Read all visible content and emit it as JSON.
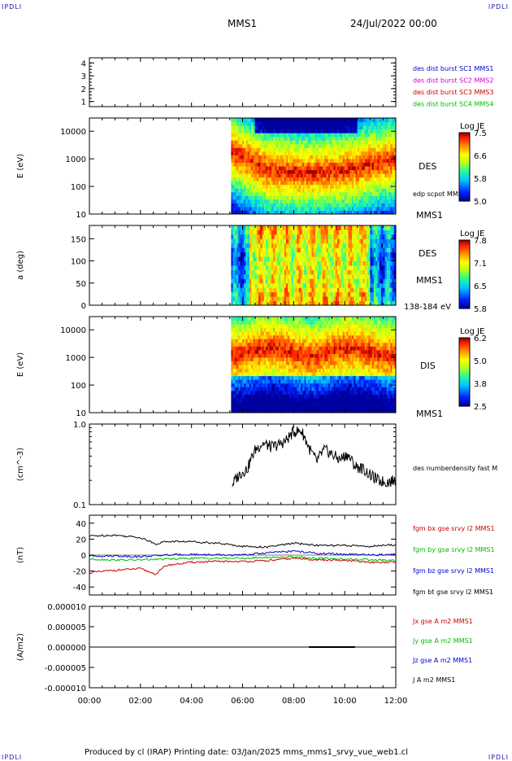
{
  "header": {
    "corner_left": "IPDLI",
    "corner_right": "IPDLI",
    "spacecraft": "MMS1",
    "date": "24/Jul/2022 00:00"
  },
  "footer": {
    "text": "Produced by cl (IRAP)   Printing date: 03/Jan/2025   mms_mms1_srvy_vue_web1.cl",
    "corner_left": "IPDLI",
    "corner_right": "IPDLI"
  },
  "chart_data": [
    {
      "type": "line",
      "panel": "burst-flags",
      "yticks": [
        "1",
        "2",
        "3",
        "4"
      ],
      "ylim": [
        0.6,
        4.4
      ],
      "series": [
        {
          "name": "des dist burst SC1 MMS1",
          "color": "#0000cc"
        },
        {
          "name": "des dist burst SC2 MMS2",
          "color": "#cc00cc"
        },
        {
          "name": "des dist burst SC3 MMS3",
          "color": "#cc0000"
        },
        {
          "name": "des dist burst SC4 MMS4",
          "color": "#00bb00"
        }
      ]
    },
    {
      "type": "heatmap",
      "panel": "des-energy",
      "ylabel": "E (eV)",
      "yscale": "log",
      "ylim": [
        10,
        30000
      ],
      "yticks": [
        "10",
        "100",
        "1000",
        "10000"
      ],
      "x_start_hour": 5.55,
      "label": "DES",
      "sublabel": "MMS1",
      "overlay_label": "edp scpot MMS1",
      "colorbar": {
        "title": "Log JE",
        "ticks": [
          "7.5",
          "6.6",
          "5.8",
          "5.0"
        ]
      },
      "profile_hours": [
        5.55,
        7.0,
        8.5,
        10.0,
        12.0
      ],
      "peak_log_energy": [
        3.3,
        2.6,
        2.5,
        2.6,
        3.0
      ]
    },
    {
      "type": "heatmap",
      "panel": "des-pitch-angle",
      "ylabel": "a (deg)",
      "ylim": [
        0,
        180
      ],
      "yticks": [
        "0",
        "50",
        "100",
        "150"
      ],
      "x_start_hour": 5.55,
      "label": "DES",
      "sublabel": "MMS1",
      "energy_band": "138-184 eV",
      "colorbar": {
        "title": "Log JE",
        "ticks": [
          "7.8",
          "7.1",
          "6.5",
          "5.8"
        ]
      }
    },
    {
      "type": "heatmap",
      "panel": "dis-energy",
      "ylabel": "E (eV)",
      "yscale": "log",
      "ylim": [
        10,
        30000
      ],
      "yticks": [
        "10",
        "100",
        "1000",
        "10000"
      ],
      "x_start_hour": 5.55,
      "label": "DIS",
      "sublabel": "MMS1",
      "colorbar": {
        "title": "Log JE",
        "ticks": [
          "6.2",
          "5.0",
          "3.8",
          "2.5"
        ]
      }
    },
    {
      "type": "line",
      "panel": "density",
      "ylabel": "(cm^-3)",
      "yscale": "log",
      "ylim": [
        0.1,
        1.0
      ],
      "yticks": [
        "0.1",
        "1.0"
      ],
      "series": [
        {
          "name": "des numberdensity fast M",
          "color": "#000000",
          "x": [
            5.6,
            5.9,
            6.2,
            6.5,
            6.8,
            7.1,
            7.4,
            7.7,
            8.0,
            8.3,
            8.6,
            8.9,
            9.2,
            9.5,
            9.8,
            10.1,
            10.4,
            10.7,
            11.0,
            11.3,
            11.6,
            12.0
          ],
          "y": [
            0.18,
            0.24,
            0.28,
            0.48,
            0.58,
            0.52,
            0.55,
            0.62,
            0.8,
            0.82,
            0.5,
            0.34,
            0.48,
            0.42,
            0.36,
            0.42,
            0.3,
            0.28,
            0.23,
            0.2,
            0.19,
            0.2
          ]
        }
      ]
    },
    {
      "type": "line",
      "panel": "magnetic-field",
      "ylabel": "(nT)",
      "ylim": [
        -50,
        50
      ],
      "yticks": [
        "-40",
        "-20",
        "0",
        "20",
        "40"
      ],
      "series": [
        {
          "name": "fgm bx gse srvy l2 MMS1",
          "color": "#cc0000",
          "x": [
            0,
            1,
            2,
            2.6,
            3,
            4,
            5,
            6,
            7,
            8,
            9,
            10,
            11,
            12
          ],
          "y": [
            -22,
            -19,
            -17,
            -24,
            -13,
            -9,
            -8,
            -8,
            -7,
            -4,
            -6,
            -7,
            -9,
            -9
          ]
        },
        {
          "name": "fgm by gse srvy l2 MMS1",
          "color": "#00bb00",
          "x": [
            0,
            1,
            2,
            3,
            4,
            5,
            6,
            7,
            8,
            9,
            10,
            11,
            12
          ],
          "y": [
            -5,
            -6,
            -6,
            -5,
            -4,
            -4,
            -4,
            -3,
            -2,
            -4,
            -5,
            -6,
            -7
          ]
        },
        {
          "name": "fgm bz gse srvy l2 MMS1",
          "color": "#0000cc",
          "x": [
            0,
            1,
            2,
            3,
            4,
            5,
            6,
            7,
            8,
            9,
            10,
            11,
            12
          ],
          "y": [
            -1,
            -1,
            -2,
            0,
            1,
            0,
            0,
            3,
            5,
            2,
            1,
            0,
            1
          ]
        },
        {
          "name": "fgm bt gse srvy l2 MMS1",
          "color": "#000000",
          "x": [
            0,
            1,
            2,
            2.6,
            3,
            4,
            5,
            6,
            7,
            8,
            9,
            10,
            11,
            12
          ],
          "y": [
            24,
            25,
            22,
            14,
            17,
            17,
            15,
            11,
            10,
            15,
            12,
            12,
            11,
            13
          ]
        }
      ]
    },
    {
      "type": "line",
      "panel": "current-density",
      "ylabel": "(A/m2)",
      "ylim": [
        -1e-05,
        1e-05
      ],
      "yticks": [
        "0.000010",
        "0.000005",
        "0.000000",
        "-0.000005",
        "-0.000010"
      ],
      "series": [
        {
          "name": "Jx gse A m2 MMS1",
          "color": "#cc0000"
        },
        {
          "name": "Jy gse A m2 MMS1",
          "color": "#00bb00"
        },
        {
          "name": "Jz gse A m2 MMS1",
          "color": "#0000cc"
        },
        {
          "name": "J A m2 MMS1",
          "color": "#000000"
        }
      ]
    }
  ],
  "x_axis": {
    "ticks": [
      "00:00",
      "02:00",
      "04:00",
      "06:00",
      "08:00",
      "10:00",
      "12:00"
    ],
    "xlim": [
      0,
      12
    ]
  }
}
